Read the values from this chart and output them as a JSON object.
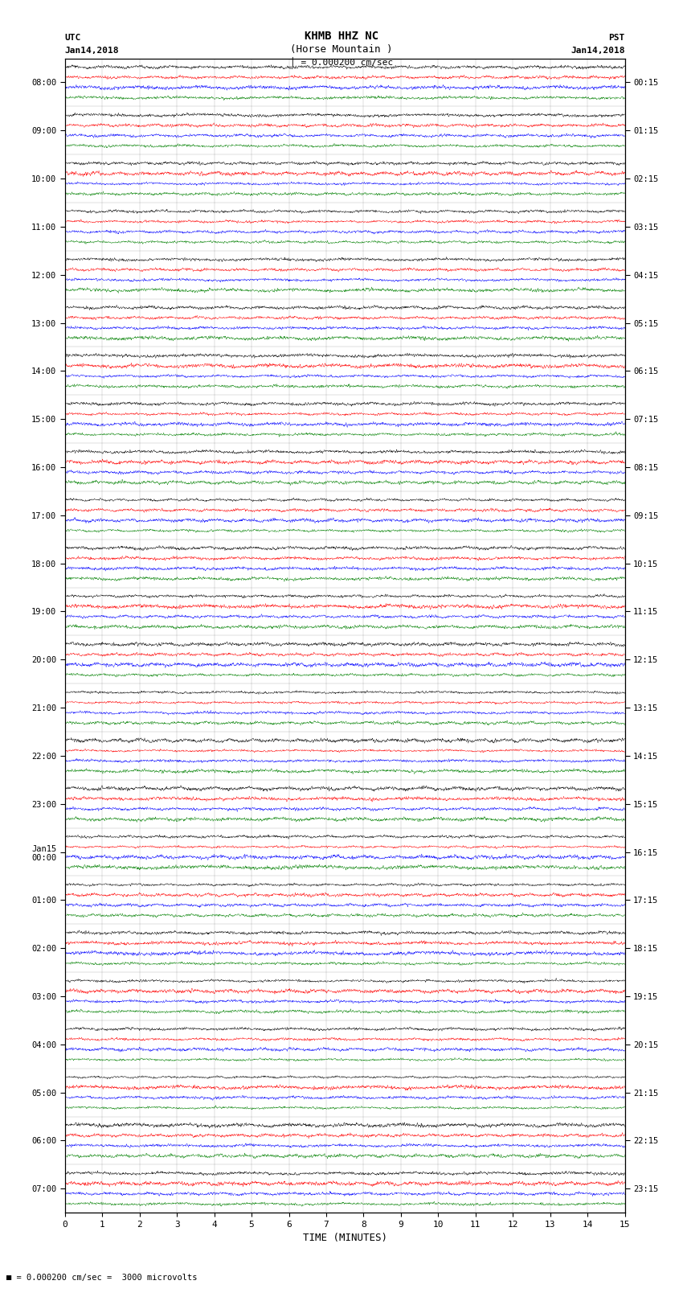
{
  "title_line1": "KHMB HHZ NC",
  "title_line2": "(Horse Mountain )",
  "scale_label": "= 0.000200 cm/sec",
  "left_label": "UTC",
  "left_date": "Jan14,2018",
  "right_label": "PST",
  "right_date": "Jan14,2018",
  "xlabel": "TIME (MINUTES)",
  "bottom_note": "= 0.000200 cm/sec =  3000 microvolts",
  "left_times": [
    "08:00",
    "09:00",
    "10:00",
    "11:00",
    "12:00",
    "13:00",
    "14:00",
    "15:00",
    "16:00",
    "17:00",
    "18:00",
    "19:00",
    "20:00",
    "21:00",
    "22:00",
    "23:00",
    "Jan15\n00:00",
    "01:00",
    "02:00",
    "03:00",
    "04:00",
    "05:00",
    "06:00",
    "07:00"
  ],
  "right_times": [
    "00:15",
    "01:15",
    "02:15",
    "03:15",
    "04:15",
    "05:15",
    "06:15",
    "07:15",
    "08:15",
    "09:15",
    "10:15",
    "11:15",
    "12:15",
    "13:15",
    "14:15",
    "15:15",
    "16:15",
    "17:15",
    "18:15",
    "19:15",
    "20:15",
    "21:15",
    "22:15",
    "23:15"
  ],
  "n_rows": 24,
  "n_traces_per_row": 4,
  "trace_colors": [
    "black",
    "red",
    "blue",
    "green"
  ],
  "bg_color": "white",
  "fig_width": 8.5,
  "fig_height": 16.13,
  "dpi": 100,
  "xmin": 0,
  "xmax": 15,
  "xticks": [
    0,
    1,
    2,
    3,
    4,
    5,
    6,
    7,
    8,
    9,
    10,
    11,
    12,
    13,
    14,
    15
  ],
  "noise_seed": 42,
  "amplitude_base": 0.18,
  "amplitude_vary": 0.12
}
